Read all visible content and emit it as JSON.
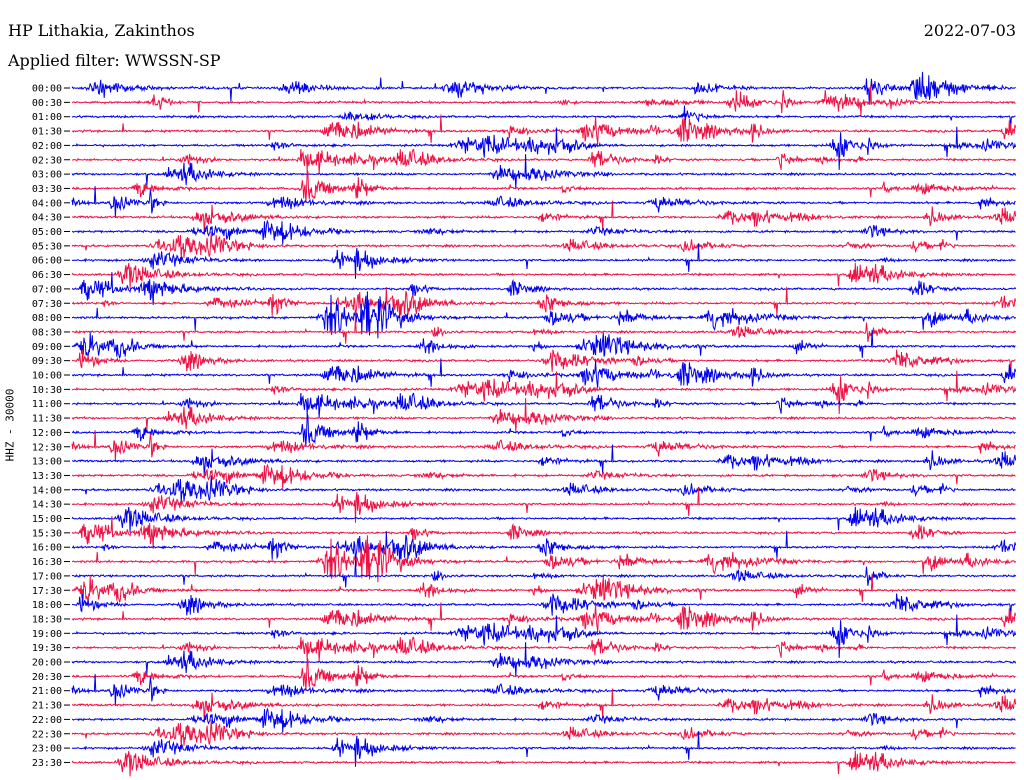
{
  "header": {
    "station": "HP Lithakia, Zakinthos",
    "date": "2022-07-03",
    "filter": "Applied filter: WWSSN-SP"
  },
  "chart_data": {
    "type": "line",
    "title": "HP Lithakia, Zakinthos",
    "date": "2022-07-03",
    "filter": "Applied filter: WWSSN-SP",
    "ylabel": "HHZ - 30000",
    "tick_labels": [
      "00:00",
      "00:30",
      "01:00",
      "01:30",
      "02:00",
      "02:30",
      "03:00",
      "03:30",
      "04:00",
      "04:30",
      "05:00",
      "05:30",
      "06:00",
      "06:30",
      "07:00",
      "07:30",
      "08:00",
      "08:30",
      "09:00",
      "09:30",
      "10:00",
      "10:30",
      "11:00",
      "11:30",
      "12:00",
      "12:30",
      "13:00",
      "13:30",
      "14:00",
      "14:30",
      "15:00",
      "15:30",
      "16:00",
      "16:30",
      "17:00",
      "17:30",
      "18:00",
      "18:30",
      "19:00",
      "19:30",
      "20:00",
      "20:30",
      "21:00",
      "21:30",
      "22:00",
      "22:30",
      "23:00",
      "23:30"
    ],
    "trace_colors": [
      "#0000ee",
      "#ee1144"
    ],
    "grid": false,
    "legend": "none"
  }
}
